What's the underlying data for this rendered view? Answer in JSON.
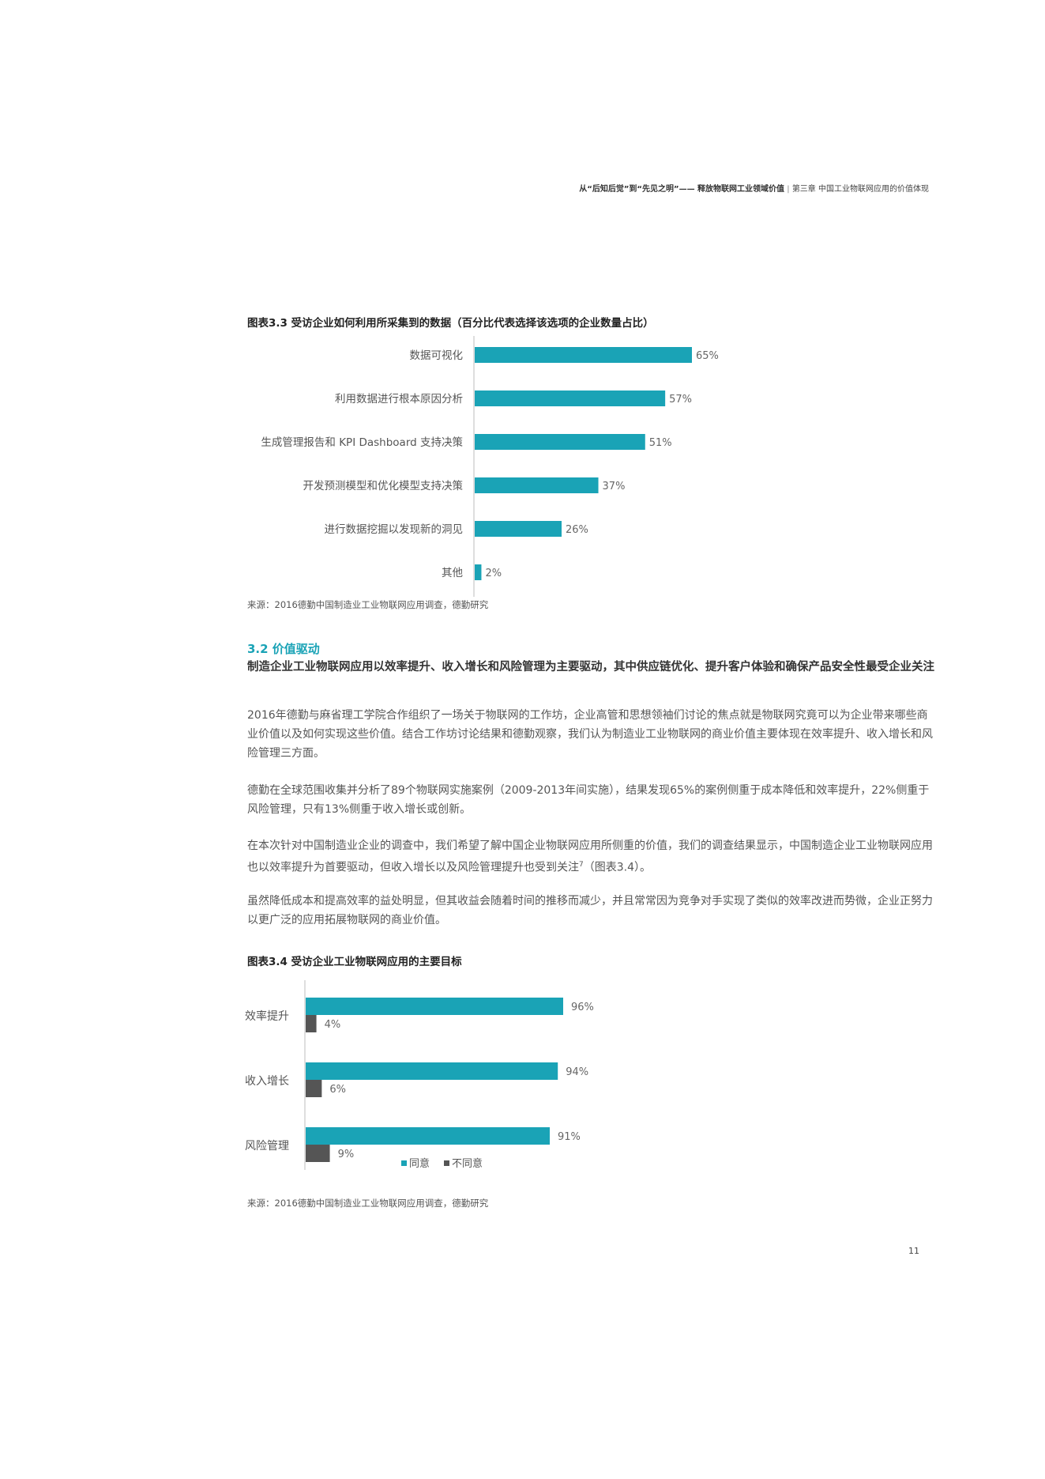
{
  "header": {
    "title": "从“后知后觉”到“先见之明”—— 释放物联网工业领域价值",
    "chapter": "第三章 中国工业物联网应用的价值体现"
  },
  "figure1": {
    "title": "图表3.3 受访企业如何利用所采集到的数据（百分比代表选择该选项的企业数量占比）",
    "source": "来源：2016德勤中国制造业工业物联网应用调查，德勤研究"
  },
  "section": {
    "number_title": "3.2 价值驱动",
    "subtitle": "制造企业工业物联网应用以效率提升、收入增长和风险管理为主要驱动，其中供应链优化、提升客户体验和确保产品安全性最受企业关注"
  },
  "paragraphs": [
    "2016年德勤与麻省理工学院合作组织了一场关于物联网的工作坊，企业高管和思想领袖们讨论的焦点就是物联网究竟可以为企业带来哪些商业价值以及如何实现这些价值。结合工作坊讨论结果和德勤观察，我们认为制造业工业物联网的商业价值主要体现在效率提升、收入增长和风险管理三方面。",
    "德勤在全球范围收集并分析了89个物联网实施案例（2009-2013年间实施），结果发现65%的案例侧重于成本降低和效率提升，22%侧重于风险管理，只有13%侧重于收入增长或创新。",
    "在本次针对中国制造业企业的调查中，我们希望了解中国企业物联网应用所侧重的价值，我们的调查结果显示，中国制造企业工业物联网应用也以效率提升为首要驱动，但收入增长以及风险管理提升也受到关注",
    "虽然降低成本和提高效率的益处明显，但其收益会随着时间的推移而减少，并且常常因为竞争对手实现了类似的效率改进而势微，企业正努力以更广泛的应用拓展物联网的商业价值。"
  ],
  "para3_sup": "7",
  "para3_tail": "（图表3.4）。",
  "figure2": {
    "title": "图表3.4 受访企业工业物联网应用的主要目标",
    "source": "来源：2016德勤中国制造业工业物联网应用调查，德勤研究"
  },
  "page_number": "11",
  "chart_data": [
    {
      "type": "bar",
      "orientation": "horizontal",
      "categories": [
        "数据可视化",
        "利用数据进行根本原因分析",
        "生成管理报告和 KPI Dashboard 支持决策",
        "开发预测模型和优化模型支持决策",
        "进行数据挖掘以发现新的洞见",
        "其他"
      ],
      "values": [
        65,
        57,
        51,
        37,
        26,
        2
      ],
      "value_labels": [
        "65%",
        "57%",
        "51%",
        "37%",
        "26%",
        "2%"
      ],
      "color": "#1aa3b6",
      "xlim": [
        0,
        100
      ],
      "grid": false
    },
    {
      "type": "bar",
      "orientation": "horizontal",
      "categories": [
        "效率提升",
        "收入增长",
        "风险管理"
      ],
      "series": [
        {
          "name": "同意",
          "values": [
            96,
            94,
            91
          ],
          "labels": [
            "96%",
            "94%",
            "91%"
          ],
          "color": "#1aa3b6"
        },
        {
          "name": "不同意",
          "values": [
            4,
            6,
            9
          ],
          "labels": [
            "4%",
            "6%",
            "9%"
          ],
          "color": "#555555"
        }
      ],
      "legend": "bottom-center",
      "xlim": [
        0,
        100
      ],
      "grid": false
    }
  ]
}
